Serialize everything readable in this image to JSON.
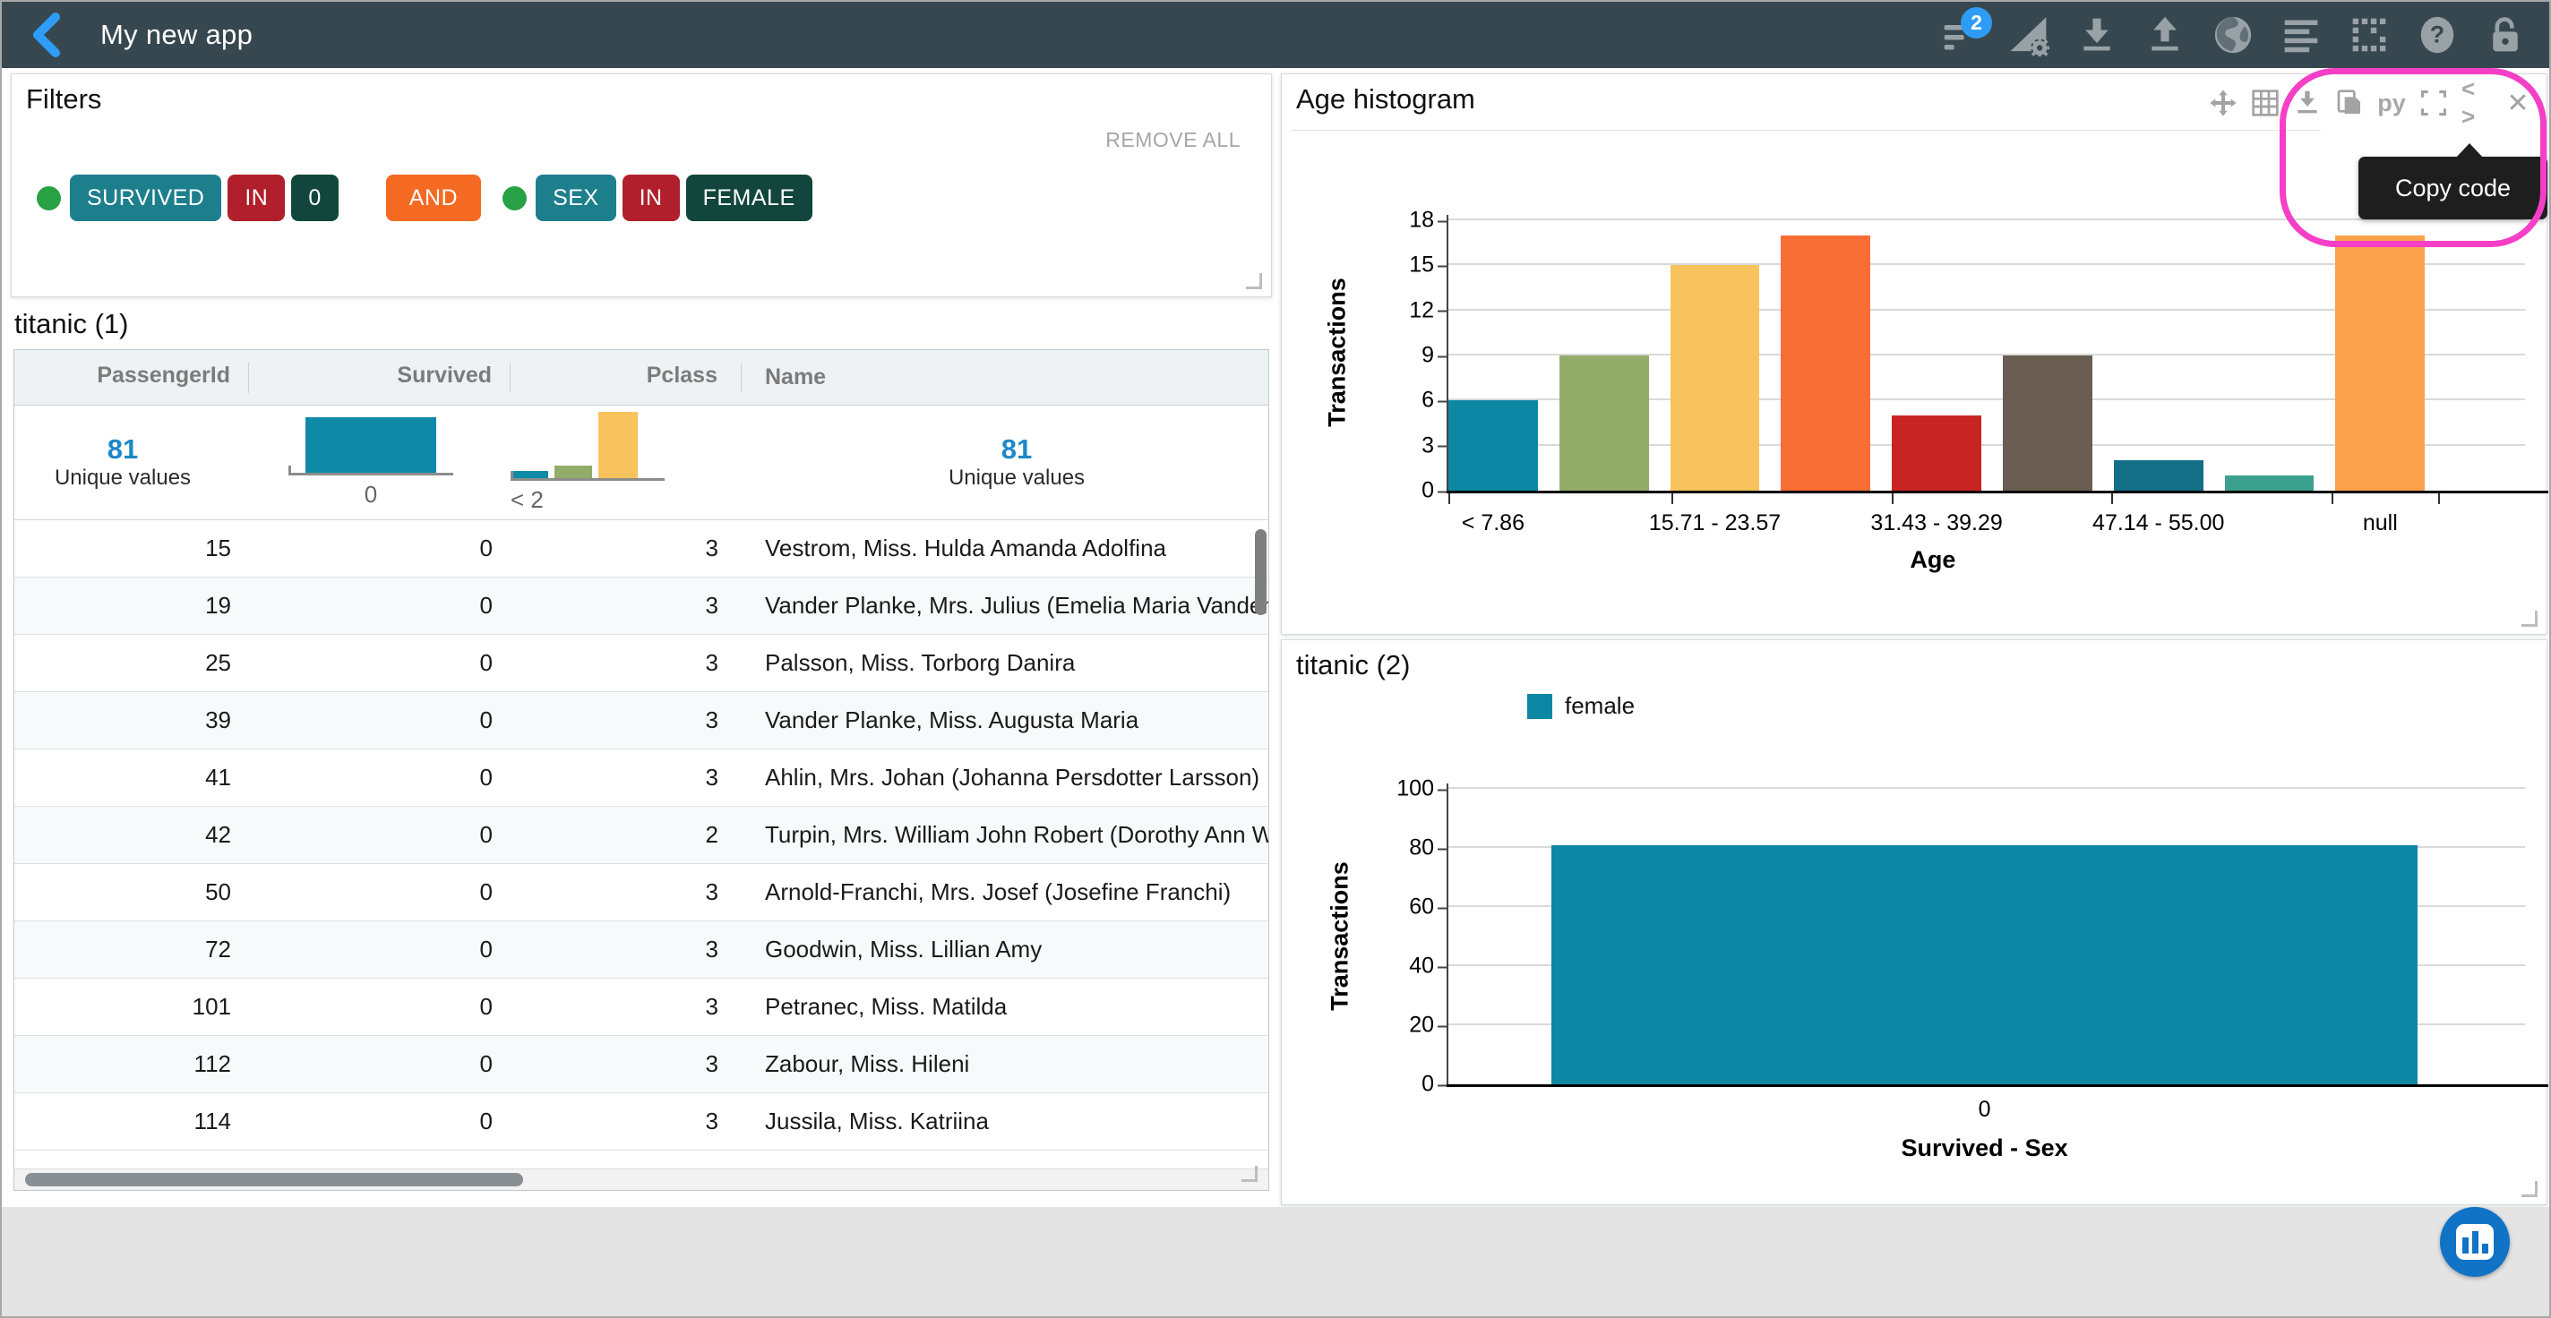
{
  "navbar": {
    "title": "My new app",
    "filter_badge": "2",
    "icon_names": [
      "back-chevron-icon",
      "filter-list-icon",
      "chart-settings-icon",
      "download-icon",
      "upload-icon",
      "globe-icon",
      "align-lines-icon",
      "dotted-grid-icon",
      "help-icon",
      "unlock-icon"
    ]
  },
  "filters_panel": {
    "title": "Filters",
    "remove_all_label": "REMOVE ALL",
    "chips": [
      {
        "kind": "dot"
      },
      {
        "kind": "field",
        "label": "SURVIVED"
      },
      {
        "kind": "op",
        "label": "IN"
      },
      {
        "kind": "value",
        "label": "0"
      },
      {
        "kind": "and",
        "label": "AND"
      },
      {
        "kind": "dot"
      },
      {
        "kind": "field",
        "label": "SEX"
      },
      {
        "kind": "op",
        "label": "IN"
      },
      {
        "kind": "value",
        "label": "FEMALE"
      }
    ]
  },
  "table_panel": {
    "title": "titanic (1)",
    "columns": [
      {
        "label": "PassengerId",
        "align": "right"
      },
      {
        "label": "Survived",
        "align": "right"
      },
      {
        "label": "Pclass",
        "align": "right"
      },
      {
        "label": "Name",
        "align": "left"
      }
    ],
    "summary": {
      "passengerid": {
        "number": "81",
        "label": "Unique values"
      },
      "survived_mini_chart": {
        "bars": [
          {
            "height": 62,
            "color": "#0e8aa7",
            "width": 146
          }
        ],
        "label": "0"
      },
      "pclass_mini_chart": {
        "bars": [
          {
            "height": 8,
            "color": "#0e8aa7",
            "width": 42
          },
          {
            "height": 14,
            "color": "#94ac69",
            "width": 42
          },
          {
            "height": 74,
            "color": "#f8c35c",
            "width": 44
          }
        ],
        "label": "< 2"
      },
      "name": {
        "number": "81",
        "label": "Unique values"
      }
    },
    "rows": [
      [
        "15",
        "0",
        "3",
        "Vestrom, Miss. Hulda Amanda Adolfina"
      ],
      [
        "19",
        "0",
        "3",
        "Vander Planke, Mrs. Julius (Emelia Maria Vandem"
      ],
      [
        "25",
        "0",
        "3",
        "Palsson, Miss. Torborg Danira"
      ],
      [
        "39",
        "0",
        "3",
        "Vander Planke, Miss. Augusta Maria"
      ],
      [
        "41",
        "0",
        "3",
        "Ahlin, Mrs. Johan (Johanna Persdotter Larsson)"
      ],
      [
        "42",
        "0",
        "2",
        "Turpin, Mrs. William John Robert (Dorothy Ann W"
      ],
      [
        "50",
        "0",
        "3",
        "Arnold-Franchi, Mrs. Josef (Josefine Franchi)"
      ],
      [
        "72",
        "0",
        "3",
        "Goodwin, Miss. Lillian Amy"
      ],
      [
        "101",
        "0",
        "3",
        "Petranec, Miss. Matilda"
      ],
      [
        "112",
        "0",
        "3",
        "Zabour, Miss. Hileni"
      ],
      [
        "114",
        "0",
        "3",
        "Jussila, Miss. Katriina"
      ]
    ]
  },
  "age_histogram_panel": {
    "title": "Age histogram",
    "tooltip_label": "Copy code",
    "toolbar_icon_names": [
      "move-icon",
      "grid-icon",
      "download-icon",
      "copy-icon",
      "python-icon",
      "expand-icon",
      "code-icon",
      "close-icon"
    ],
    "python_icon_text": "py",
    "code_icon_text": "< >",
    "close_icon_text": "✕",
    "chart_data": {
      "type": "bar",
      "title": "Age histogram",
      "xlabel": "Age",
      "ylabel": "Transactions",
      "ylim": [
        0,
        18
      ],
      "yticks": [
        0,
        3,
        6,
        9,
        12,
        15,
        18
      ],
      "values": [
        6,
        9,
        15,
        17,
        5,
        9,
        2,
        1,
        17
      ],
      "bar_colors": [
        "#0e87a5",
        "#94ac69",
        "#f8c35c",
        "#f96e35",
        "#c92424",
        "#695e51",
        "#136e86",
        "#3ba18e",
        "#faa24b"
      ],
      "x_tick_labels": [
        "< 7.86",
        "15.71 - 23.57",
        "31.43 - 39.29",
        "47.14 - 55.00",
        "null"
      ],
      "grid": true,
      "legend_position": "none"
    }
  },
  "titanic2_panel": {
    "title": "titanic (2)",
    "chart_data": {
      "type": "bar",
      "categories": [
        "0"
      ],
      "series": [
        {
          "name": "female",
          "values": [
            81
          ],
          "color": "#0e87a5"
        }
      ],
      "xlabel": "Survived - Sex",
      "ylabel": "Transactions",
      "ylim": [
        0,
        100
      ],
      "yticks": [
        0,
        20,
        40,
        60,
        80,
        100
      ],
      "grid": true,
      "legend_position": "top-left"
    }
  },
  "palette": {
    "navbar_bg": "#37474f",
    "accent_blue": "#2e9cf5",
    "chip_field": "#1e7f8c",
    "chip_op": "#b01f2b",
    "chip_value": "#12463c",
    "chip_and": "#f56a22",
    "chip_dot": "#28a044",
    "unique_value_blue": "#1d87c8",
    "teal_bar": "#0e87a5",
    "annotation_pink": "#f43fc6",
    "fab_blue": "#1173c5"
  }
}
